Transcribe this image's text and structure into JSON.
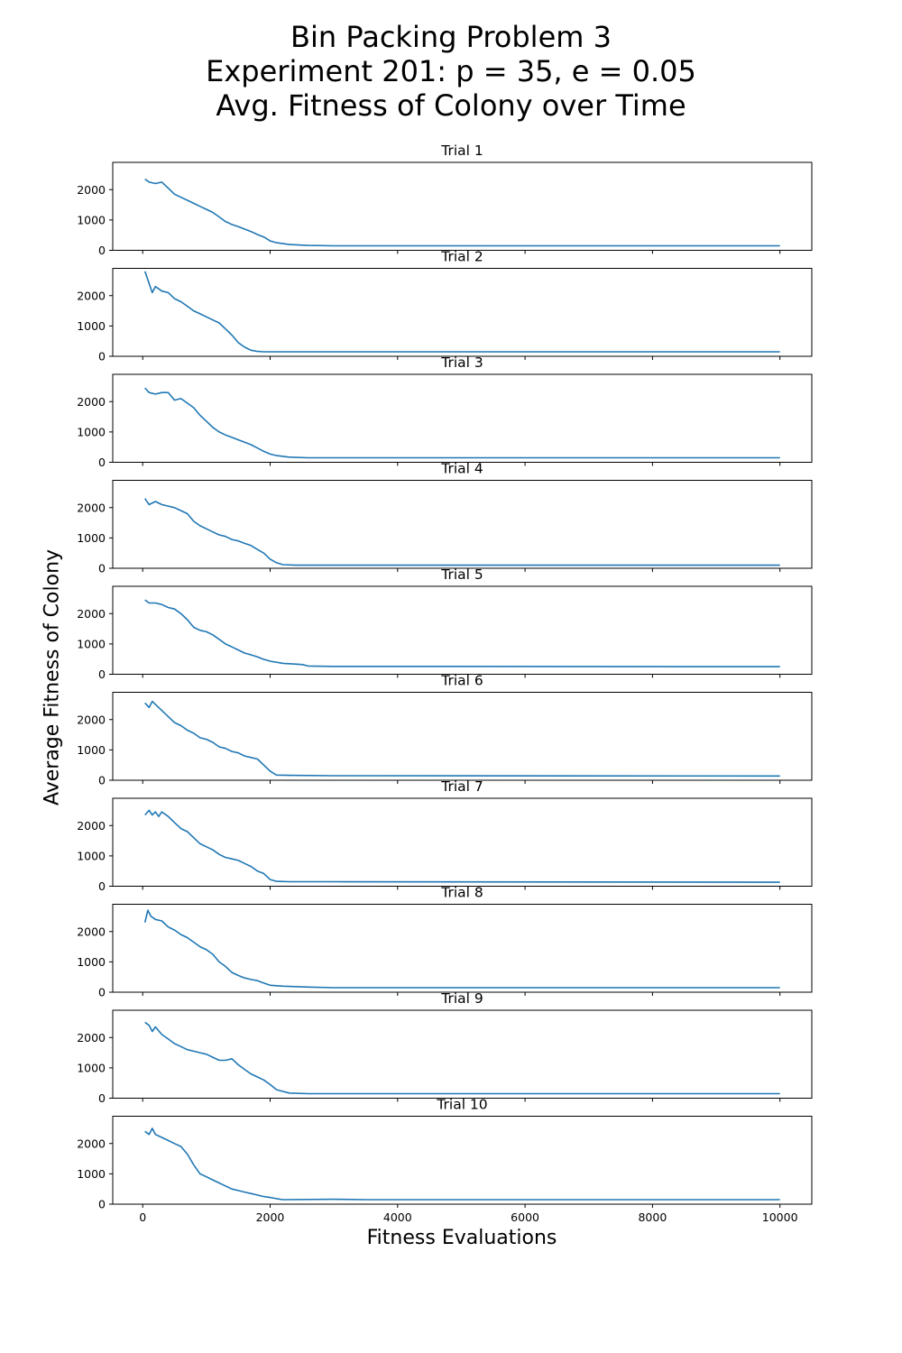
{
  "figure": {
    "title_lines": [
      "Bin Packing Problem 3",
      "Experiment 201: p = 35, e = 0.05",
      "Avg. Fitness of Colony over Time"
    ],
    "xlabel": "Fitness Evaluations",
    "ylabel": "Average Fitness of Colony",
    "line_color": "#1f77b4"
  },
  "chart_data": {
    "type": "line",
    "xlim": [
      -470,
      10500
    ],
    "ylim": [
      0,
      2900
    ],
    "xticks": [
      0,
      2000,
      4000,
      6000,
      8000,
      10000
    ],
    "yticks": [
      0,
      1000,
      2000
    ],
    "grid": false,
    "panels": [
      {
        "title": "Trial 1",
        "x": [
          35,
          100,
          200,
          300,
          400,
          500,
          600,
          700,
          800,
          900,
          1000,
          1100,
          1200,
          1300,
          1400,
          1500,
          1600,
          1700,
          1800,
          1900,
          2000,
          2100,
          2300,
          2600,
          3000,
          10000
        ],
        "y": [
          2350,
          2250,
          2200,
          2250,
          2050,
          1850,
          1750,
          1650,
          1550,
          1450,
          1350,
          1250,
          1100,
          950,
          850,
          780,
          700,
          620,
          520,
          440,
          310,
          250,
          190,
          160,
          150,
          150
        ]
      },
      {
        "title": "Trial 2",
        "x": [
          35,
          100,
          150,
          200,
          300,
          400,
          500,
          600,
          700,
          800,
          900,
          1000,
          1100,
          1200,
          1300,
          1400,
          1500,
          1600,
          1700,
          1800,
          1900,
          2000,
          2500,
          10000
        ],
        "y": [
          2800,
          2400,
          2100,
          2300,
          2150,
          2100,
          1900,
          1800,
          1650,
          1500,
          1400,
          1300,
          1200,
          1100,
          900,
          700,
          450,
          300,
          200,
          160,
          150,
          150,
          150,
          150
        ]
      },
      {
        "title": "Trial 3",
        "x": [
          35,
          100,
          200,
          300,
          400,
          500,
          600,
          700,
          800,
          900,
          1000,
          1100,
          1200,
          1300,
          1400,
          1500,
          1600,
          1700,
          1800,
          1900,
          2000,
          2100,
          2300,
          2600,
          10000
        ],
        "y": [
          2450,
          2300,
          2250,
          2300,
          2300,
          2050,
          2100,
          1950,
          1800,
          1550,
          1350,
          1150,
          1000,
          900,
          820,
          740,
          660,
          580,
          470,
          360,
          270,
          220,
          170,
          150,
          150
        ]
      },
      {
        "title": "Trial 4",
        "x": [
          35,
          100,
          200,
          300,
          400,
          500,
          600,
          700,
          800,
          900,
          1000,
          1100,
          1200,
          1300,
          1400,
          1500,
          1600,
          1700,
          1800,
          1900,
          2000,
          2100,
          2200,
          2400,
          10000
        ],
        "y": [
          2300,
          2100,
          2200,
          2100,
          2050,
          2000,
          1900,
          1800,
          1550,
          1400,
          1300,
          1200,
          1100,
          1050,
          950,
          900,
          820,
          750,
          620,
          500,
          300,
          180,
          120,
          100,
          100
        ]
      },
      {
        "title": "Trial 5",
        "x": [
          35,
          100,
          200,
          300,
          400,
          500,
          600,
          700,
          800,
          900,
          1000,
          1100,
          1200,
          1300,
          1400,
          1500,
          1600,
          1700,
          1800,
          1900,
          2000,
          2200,
          2500,
          2600,
          3000,
          4500,
          10000
        ],
        "y": [
          2450,
          2350,
          2350,
          2300,
          2200,
          2150,
          2000,
          1800,
          1550,
          1450,
          1400,
          1300,
          1150,
          1000,
          900,
          800,
          700,
          640,
          570,
          490,
          430,
          360,
          320,
          270,
          260,
          260,
          250
        ]
      },
      {
        "title": "Trial 6",
        "x": [
          35,
          100,
          150,
          200,
          300,
          400,
          500,
          600,
          700,
          800,
          900,
          1000,
          1100,
          1200,
          1300,
          1400,
          1500,
          1600,
          1700,
          1800,
          1900,
          2000,
          2100,
          2300,
          3000,
          10000
        ],
        "y": [
          2550,
          2400,
          2600,
          2500,
          2300,
          2100,
          1900,
          1800,
          1650,
          1550,
          1400,
          1350,
          1250,
          1100,
          1050,
          950,
          900,
          800,
          750,
          700,
          500,
          300,
          170,
          160,
          150,
          140
        ]
      },
      {
        "title": "Trial 7",
        "x": [
          35,
          100,
          150,
          200,
          250,
          300,
          400,
          500,
          600,
          700,
          800,
          900,
          1000,
          1100,
          1200,
          1300,
          1400,
          1500,
          1600,
          1700,
          1800,
          1900,
          2000,
          2100,
          2300,
          3000,
          10000
        ],
        "y": [
          2350,
          2500,
          2350,
          2450,
          2300,
          2450,
          2300,
          2100,
          1900,
          1800,
          1600,
          1400,
          1300,
          1200,
          1050,
          950,
          900,
          850,
          750,
          650,
          500,
          420,
          220,
          160,
          150,
          150,
          130
        ]
      },
      {
        "title": "Trial 8",
        "x": [
          35,
          80,
          130,
          200,
          300,
          400,
          500,
          600,
          700,
          800,
          900,
          1000,
          1100,
          1200,
          1300,
          1400,
          1500,
          1600,
          1700,
          1800,
          1900,
          2000,
          2200,
          2600,
          3000,
          10000
        ],
        "y": [
          2300,
          2700,
          2500,
          2400,
          2350,
          2150,
          2050,
          1900,
          1800,
          1650,
          1500,
          1400,
          1250,
          1000,
          850,
          650,
          550,
          470,
          420,
          380,
          300,
          230,
          200,
          170,
          150,
          150
        ]
      },
      {
        "title": "Trial 9",
        "x": [
          35,
          100,
          150,
          200,
          300,
          400,
          500,
          600,
          700,
          800,
          900,
          1000,
          1100,
          1200,
          1300,
          1400,
          1500,
          1600,
          1700,
          1800,
          1900,
          2000,
          2100,
          2300,
          2600,
          10000
        ],
        "y": [
          2500,
          2400,
          2200,
          2350,
          2100,
          1950,
          1800,
          1700,
          1600,
          1550,
          1500,
          1450,
          1350,
          1250,
          1250,
          1300,
          1100,
          950,
          800,
          700,
          600,
          450,
          280,
          170,
          150,
          150
        ]
      },
      {
        "title": "Trial 10",
        "x": [
          35,
          100,
          150,
          200,
          300,
          400,
          500,
          600,
          700,
          800,
          900,
          1000,
          1100,
          1200,
          1300,
          1400,
          1500,
          1600,
          1700,
          1800,
          1900,
          2000,
          2100,
          2200,
          3000,
          3500,
          10000
        ],
        "y": [
          2400,
          2300,
          2500,
          2300,
          2200,
          2100,
          2000,
          1900,
          1650,
          1300,
          1000,
          900,
          800,
          700,
          600,
          500,
          450,
          400,
          350,
          300,
          250,
          220,
          180,
          150,
          160,
          150,
          150
        ]
      }
    ]
  }
}
